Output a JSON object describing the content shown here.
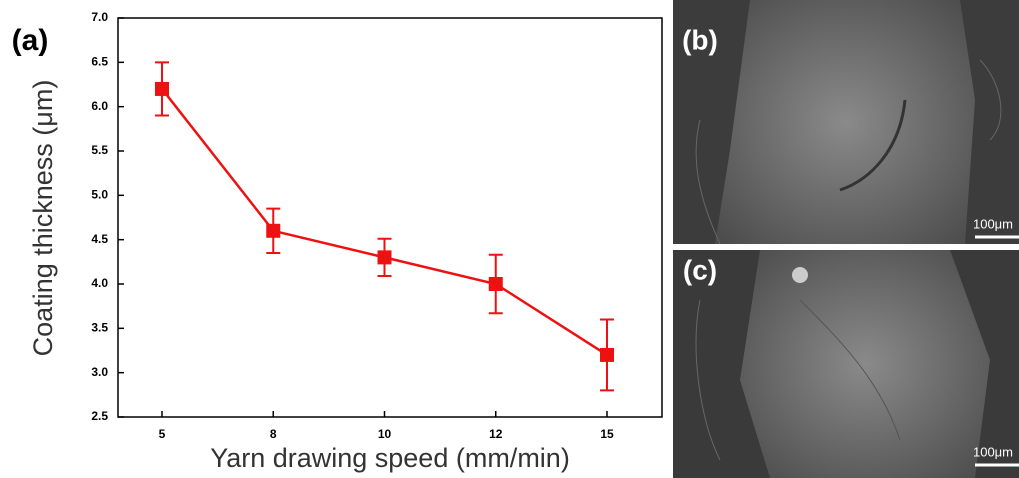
{
  "chart_data": {
    "type": "line",
    "panel_label": "(a)",
    "x_label": "Yarn drawing speed (mm/min)",
    "y_label": "Coating thickness (μm)",
    "categories": [
      "5",
      "8",
      "10",
      "12",
      "15"
    ],
    "values": [
      6.2,
      4.6,
      4.3,
      4.0,
      3.2
    ],
    "errors": [
      0.3,
      0.25,
      0.21,
      0.33,
      0.4
    ],
    "color": "#ee1111",
    "ylim": [
      2.5,
      7.0
    ],
    "yticks": [
      2.5,
      {
        "value": 3,
        "label": "3.0"
      },
      3.5,
      {
        "value": 4,
        "label": "4.0"
      },
      4.5,
      {
        "value": 5,
        "label": "5.0"
      },
      5.5,
      {
        "value": 6,
        "label": "6.0"
      },
      6.5,
      {
        "value": 7,
        "label": "7.0"
      }
    ]
  },
  "panels": [
    {
      "label": "(b)",
      "scale_bar": "100μm"
    },
    {
      "label": "(c)",
      "scale_bar": "100μm"
    }
  ]
}
